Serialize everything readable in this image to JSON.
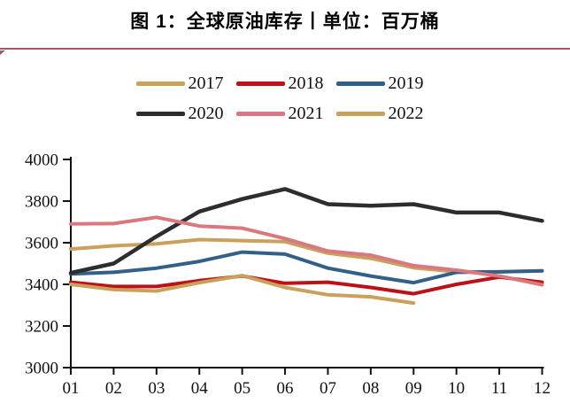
{
  "header": {
    "title": "图 1：全球原油库存丨单位：百万桶"
  },
  "colors": {
    "background": "#ffffff",
    "header_rule": "#9c5f5f",
    "axis": "#111111"
  },
  "chart_data": {
    "type": "line",
    "title": "图 1：全球原油库存丨单位：百万桶",
    "unit": "百万桶",
    "xlabel": "",
    "ylabel": "",
    "x_labels": [
      "01",
      "02",
      "03",
      "04",
      "05",
      "06",
      "07",
      "08",
      "09",
      "10",
      "11",
      "12"
    ],
    "ylim": [
      3000,
      4000
    ],
    "yticks": [
      4000,
      3800,
      3600,
      3400,
      3200,
      3000
    ],
    "grid": false,
    "legend_position": "top-center-two-rows",
    "legend_rows": [
      [
        "2017",
        "2018",
        "2019"
      ],
      [
        "2020",
        "2021",
        "2022"
      ]
    ],
    "series": [
      {
        "name": "2017",
        "color": "#c9a05c",
        "width": 4,
        "values": [
          3570,
          3585,
          3595,
          3615,
          3610,
          3605,
          3550,
          3525,
          3480,
          3460,
          3460,
          3465
        ]
      },
      {
        "name": "2018",
        "color": "#bb1117",
        "width": 4,
        "values": [
          3410,
          3390,
          3390,
          3418,
          3440,
          3405,
          3410,
          3385,
          3355,
          3400,
          3435,
          3410
        ]
      },
      {
        "name": "2019",
        "color": "#336089",
        "width": 4,
        "values": [
          3450,
          3458,
          3478,
          3510,
          3555,
          3545,
          3478,
          3440,
          3408,
          3458,
          3460,
          3465
        ]
      },
      {
        "name": "2020",
        "color": "#2d2d2f",
        "width": 4.5,
        "values": [
          3455,
          3500,
          3630,
          3750,
          3810,
          3858,
          3785,
          3778,
          3785,
          3745,
          3745,
          3705
        ]
      },
      {
        "name": "2021",
        "color": "#d9787e",
        "width": 4,
        "values": [
          3690,
          3692,
          3722,
          3680,
          3670,
          3620,
          3560,
          3540,
          3490,
          3468,
          3440,
          3398
        ]
      },
      {
        "name": "2022",
        "color": "#c9a05c",
        "width": 4,
        "values": [
          3400,
          3375,
          3368,
          3408,
          3442,
          3385,
          3350,
          3340,
          3310
        ]
      }
    ]
  }
}
